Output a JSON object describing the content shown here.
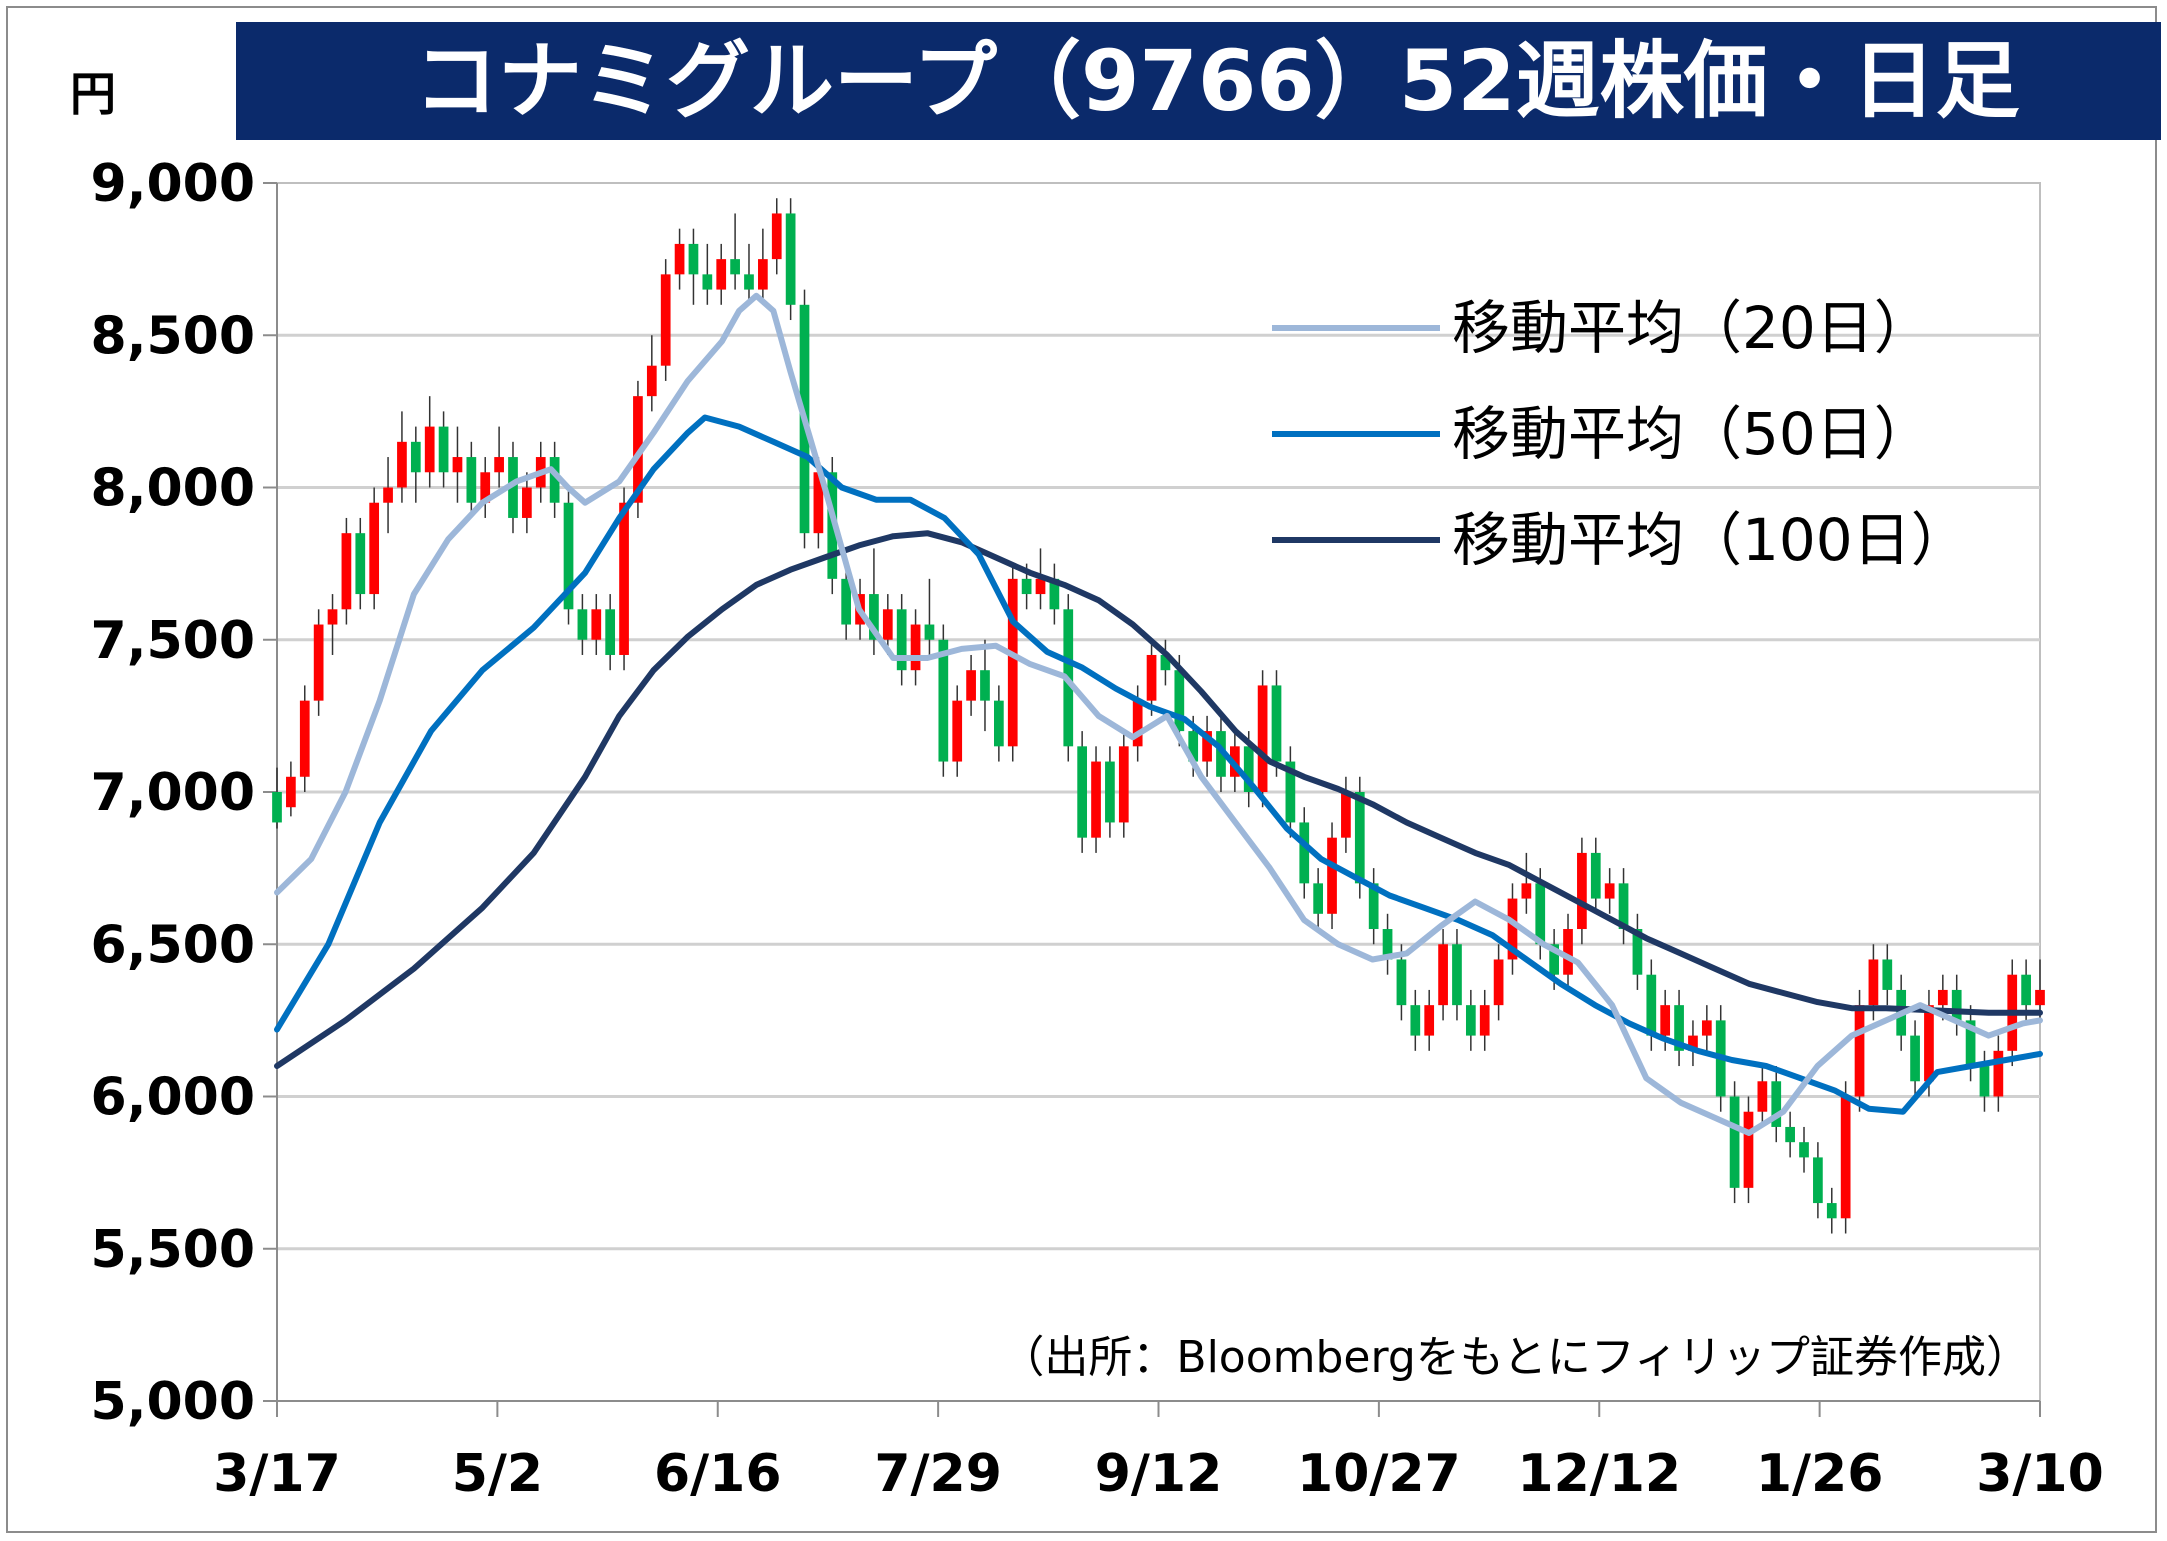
{
  "header": {
    "unit": "円",
    "title": "コナミグループ（9766）52週株価・日足"
  },
  "chart_data": {
    "type": "candlestick",
    "ylim": [
      5000,
      9000
    ],
    "yticks": [
      {
        "value": 9000,
        "label": "9,000"
      },
      {
        "value": 8500,
        "label": "8,500"
      },
      {
        "value": 8000,
        "label": "8,000"
      },
      {
        "value": 7500,
        "label": "7,500"
      },
      {
        "value": 7000,
        "label": "7,000"
      },
      {
        "value": 6500,
        "label": "6,500"
      },
      {
        "value": 6000,
        "label": "6,000"
      },
      {
        "value": 5500,
        "label": "5,500"
      },
      {
        "value": 5000,
        "label": "5,000"
      }
    ],
    "xticks": [
      "3/17",
      "5/2",
      "6/16",
      "7/29",
      "9/12",
      "10/27",
      "12/12",
      "1/26",
      "3/10"
    ],
    "grid": true,
    "source_note": "（出所：Bloombergをもとにフィリップ証券作成）",
    "colors": {
      "up": "#ff0000",
      "down": "#00b050",
      "ma20": "#9db7d9",
      "ma50": "#0070c0",
      "ma100": "#1f3864",
      "grid": "#d0d0d0"
    },
    "legend": [
      {
        "label": "移動平均（20日）",
        "color": "#9db7d9"
      },
      {
        "label": "移動平均（50日）",
        "color": "#0070c0"
      },
      {
        "label": "移動平均（100日）",
        "color": "#1f3864"
      }
    ],
    "ma20": [
      [
        0,
        6670
      ],
      [
        4,
        6780
      ],
      [
        8,
        7000
      ],
      [
        12,
        7300
      ],
      [
        16,
        7650
      ],
      [
        20,
        7830
      ],
      [
        24,
        7950
      ],
      [
        28,
        8020
      ],
      [
        32,
        8060
      ],
      [
        34,
        8000
      ],
      [
        36,
        7950
      ],
      [
        40,
        8020
      ],
      [
        44,
        8180
      ],
      [
        48,
        8350
      ],
      [
        52,
        8480
      ],
      [
        54,
        8580
      ],
      [
        56,
        8630
      ],
      [
        58,
        8580
      ],
      [
        60,
        8380
      ],
      [
        64,
        8000
      ],
      [
        68,
        7600
      ],
      [
        72,
        7440
      ],
      [
        76,
        7440
      ],
      [
        80,
        7470
      ],
      [
        84,
        7480
      ],
      [
        88,
        7420
      ],
      [
        92,
        7380
      ],
      [
        96,
        7250
      ],
      [
        100,
        7180
      ],
      [
        104,
        7250
      ],
      [
        108,
        7050
      ],
      [
        112,
        6900
      ],
      [
        116,
        6750
      ],
      [
        120,
        6580
      ],
      [
        124,
        6500
      ],
      [
        128,
        6450
      ],
      [
        132,
        6470
      ],
      [
        136,
        6560
      ],
      [
        140,
        6640
      ],
      [
        144,
        6580
      ],
      [
        148,
        6500
      ],
      [
        152,
        6440
      ],
      [
        156,
        6300
      ],
      [
        160,
        6060
      ],
      [
        164,
        5980
      ],
      [
        168,
        5930
      ],
      [
        172,
        5880
      ],
      [
        176,
        5950
      ],
      [
        180,
        6100
      ],
      [
        184,
        6200
      ],
      [
        188,
        6250
      ],
      [
        192,
        6300
      ],
      [
        196,
        6250
      ],
      [
        200,
        6200
      ],
      [
        204,
        6240
      ],
      [
        206,
        6250
      ]
    ],
    "ma50": [
      [
        0,
        6220
      ],
      [
        6,
        6500
      ],
      [
        12,
        6900
      ],
      [
        18,
        7200
      ],
      [
        24,
        7400
      ],
      [
        30,
        7540
      ],
      [
        36,
        7720
      ],
      [
        40,
        7900
      ],
      [
        44,
        8060
      ],
      [
        48,
        8180
      ],
      [
        50,
        8230
      ],
      [
        54,
        8200
      ],
      [
        58,
        8150
      ],
      [
        62,
        8100
      ],
      [
        66,
        8000
      ],
      [
        70,
        7960
      ],
      [
        74,
        7960
      ],
      [
        78,
        7900
      ],
      [
        82,
        7780
      ],
      [
        86,
        7560
      ],
      [
        90,
        7460
      ],
      [
        94,
        7410
      ],
      [
        98,
        7340
      ],
      [
        102,
        7280
      ],
      [
        106,
        7240
      ],
      [
        110,
        7150
      ],
      [
        114,
        7020
      ],
      [
        118,
        6880
      ],
      [
        122,
        6780
      ],
      [
        126,
        6720
      ],
      [
        130,
        6660
      ],
      [
        134,
        6620
      ],
      [
        138,
        6580
      ],
      [
        142,
        6530
      ],
      [
        146,
        6450
      ],
      [
        150,
        6370
      ],
      [
        154,
        6300
      ],
      [
        158,
        6240
      ],
      [
        162,
        6190
      ],
      [
        166,
        6150
      ],
      [
        170,
        6120
      ],
      [
        174,
        6100
      ],
      [
        178,
        6060
      ],
      [
        182,
        6020
      ],
      [
        186,
        5960
      ],
      [
        190,
        5950
      ],
      [
        194,
        6080
      ],
      [
        198,
        6100
      ],
      [
        202,
        6120
      ],
      [
        206,
        6140
      ]
    ],
    "ma100": [
      [
        0,
        6100
      ],
      [
        8,
        6250
      ],
      [
        16,
        6420
      ],
      [
        24,
        6620
      ],
      [
        30,
        6800
      ],
      [
        36,
        7050
      ],
      [
        40,
        7250
      ],
      [
        44,
        7400
      ],
      [
        48,
        7510
      ],
      [
        52,
        7600
      ],
      [
        56,
        7680
      ],
      [
        60,
        7730
      ],
      [
        64,
        7770
      ],
      [
        68,
        7810
      ],
      [
        72,
        7840
      ],
      [
        76,
        7850
      ],
      [
        80,
        7820
      ],
      [
        84,
        7770
      ],
      [
        88,
        7720
      ],
      [
        92,
        7680
      ],
      [
        96,
        7630
      ],
      [
        100,
        7550
      ],
      [
        104,
        7450
      ],
      [
        108,
        7330
      ],
      [
        112,
        7200
      ],
      [
        116,
        7100
      ],
      [
        120,
        7050
      ],
      [
        124,
        7010
      ],
      [
        128,
        6960
      ],
      [
        132,
        6900
      ],
      [
        136,
        6850
      ],
      [
        140,
        6800
      ],
      [
        144,
        6760
      ],
      [
        148,
        6700
      ],
      [
        152,
        6640
      ],
      [
        156,
        6580
      ],
      [
        160,
        6520
      ],
      [
        164,
        6470
      ],
      [
        168,
        6420
      ],
      [
        172,
        6370
      ],
      [
        176,
        6340
      ],
      [
        180,
        6310
      ],
      [
        184,
        6290
      ],
      [
        188,
        6290
      ],
      [
        192,
        6285
      ],
      [
        196,
        6280
      ],
      [
        200,
        6275
      ],
      [
        204,
        6275
      ],
      [
        206,
        6275
      ]
    ],
    "candles": [
      [
        7000,
        6900,
        7080,
        6880
      ],
      [
        6950,
        7050,
        7100,
        6920
      ],
      [
        7050,
        7300,
        7350,
        7000
      ],
      [
        7300,
        7550,
        7600,
        7250
      ],
      [
        7550,
        7600,
        7650,
        7450
      ],
      [
        7600,
        7850,
        7900,
        7550
      ],
      [
        7850,
        7650,
        7900,
        7600
      ],
      [
        7650,
        7950,
        8000,
        7600
      ],
      [
        7950,
        8000,
        8100,
        7850
      ],
      [
        8000,
        8150,
        8250,
        7950
      ],
      [
        8150,
        8050,
        8200,
        7950
      ],
      [
        8050,
        8200,
        8300,
        8000
      ],
      [
        8200,
        8050,
        8250,
        8000
      ],
      [
        8050,
        8100,
        8200,
        7950
      ],
      [
        8100,
        7950,
        8150,
        7900
      ],
      [
        7950,
        8050,
        8100,
        7900
      ],
      [
        8050,
        8100,
        8200,
        8000
      ],
      [
        8100,
        7900,
        8150,
        7850
      ],
      [
        7900,
        8000,
        8050,
        7850
      ],
      [
        8000,
        8100,
        8150,
        7950
      ],
      [
        8100,
        7950,
        8150,
        7900
      ],
      [
        7950,
        7600,
        8000,
        7550
      ],
      [
        7600,
        7500,
        7650,
        7450
      ],
      [
        7500,
        7600,
        7650,
        7450
      ],
      [
        7600,
        7450,
        7650,
        7400
      ],
      [
        7450,
        7950,
        8000,
        7400
      ],
      [
        7950,
        8300,
        8350,
        7900
      ],
      [
        8300,
        8400,
        8500,
        8250
      ],
      [
        8400,
        8700,
        8750,
        8350
      ],
      [
        8700,
        8800,
        8850,
        8650
      ],
      [
        8800,
        8700,
        8850,
        8600
      ],
      [
        8700,
        8650,
        8800,
        8600
      ],
      [
        8650,
        8750,
        8800,
        8600
      ],
      [
        8750,
        8700,
        8900,
        8650
      ],
      [
        8700,
        8650,
        8800,
        8600
      ],
      [
        8650,
        8750,
        8850,
        8600
      ],
      [
        8750,
        8900,
        8950,
        8700
      ],
      [
        8900,
        8600,
        8950,
        8550
      ],
      [
        8600,
        7850,
        8650,
        7800
      ],
      [
        7850,
        8050,
        8100,
        7800
      ],
      [
        8050,
        7700,
        8100,
        7650
      ],
      [
        7700,
        7550,
        7750,
        7500
      ],
      [
        7550,
        7650,
        7700,
        7500
      ],
      [
        7650,
        7500,
        7800,
        7450
      ],
      [
        7500,
        7600,
        7650,
        7450
      ],
      [
        7600,
        7400,
        7650,
        7350
      ],
      [
        7400,
        7550,
        7600,
        7350
      ],
      [
        7550,
        7500,
        7700,
        7450
      ],
      [
        7500,
        7100,
        7550,
        7050
      ],
      [
        7100,
        7300,
        7350,
        7050
      ],
      [
        7300,
        7400,
        7450,
        7250
      ],
      [
        7400,
        7300,
        7500,
        7200
      ],
      [
        7300,
        7150,
        7350,
        7100
      ],
      [
        7150,
        7700,
        7750,
        7100
      ],
      [
        7700,
        7650,
        7750,
        7600
      ],
      [
        7650,
        7700,
        7800,
        7600
      ],
      [
        7700,
        7600,
        7750,
        7550
      ],
      [
        7600,
        7150,
        7650,
        7100
      ],
      [
        7150,
        6850,
        7200,
        6800
      ],
      [
        6850,
        7100,
        7150,
        6800
      ],
      [
        7100,
        6900,
        7150,
        6850
      ],
      [
        6900,
        7150,
        7200,
        6850
      ],
      [
        7150,
        7300,
        7350,
        7100
      ],
      [
        7300,
        7450,
        7500,
        7250
      ],
      [
        7450,
        7400,
        7500,
        7350
      ],
      [
        7400,
        7200,
        7450,
        7150
      ],
      [
        7200,
        7100,
        7250,
        7050
      ],
      [
        7100,
        7200,
        7250,
        7050
      ],
      [
        7200,
        7050,
        7250,
        7000
      ],
      [
        7050,
        7150,
        7200,
        7000
      ],
      [
        7150,
        7000,
        7200,
        6950
      ],
      [
        7000,
        7350,
        7400,
        6950
      ],
      [
        7350,
        7100,
        7400,
        7050
      ],
      [
        7100,
        6900,
        7150,
        6850
      ],
      [
        6900,
        6700,
        6950,
        6650
      ],
      [
        6700,
        6600,
        6750,
        6550
      ],
      [
        6600,
        6850,
        6900,
        6550
      ],
      [
        6850,
        7000,
        7050,
        6800
      ],
      [
        7000,
        6700,
        7050,
        6650
      ],
      [
        6700,
        6550,
        6750,
        6500
      ],
      [
        6550,
        6450,
        6600,
        6400
      ],
      [
        6450,
        6300,
        6500,
        6250
      ],
      [
        6300,
        6200,
        6350,
        6150
      ],
      [
        6200,
        6300,
        6350,
        6150
      ],
      [
        6300,
        6500,
        6550,
        6250
      ],
      [
        6500,
        6300,
        6550,
        6250
      ],
      [
        6300,
        6200,
        6350,
        6150
      ],
      [
        6200,
        6300,
        6350,
        6150
      ],
      [
        6300,
        6450,
        6500,
        6250
      ],
      [
        6450,
        6650,
        6700,
        6400
      ],
      [
        6650,
        6700,
        6800,
        6600
      ],
      [
        6700,
        6500,
        6750,
        6450
      ],
      [
        6500,
        6400,
        6550,
        6350
      ],
      [
        6400,
        6550,
        6600,
        6350
      ],
      [
        6550,
        6800,
        6850,
        6500
      ],
      [
        6800,
        6650,
        6850,
        6600
      ],
      [
        6650,
        6700,
        6750,
        6600
      ],
      [
        6700,
        6550,
        6750,
        6500
      ],
      [
        6550,
        6400,
        6600,
        6350
      ],
      [
        6400,
        6200,
        6450,
        6150
      ],
      [
        6200,
        6300,
        6350,
        6150
      ],
      [
        6300,
        6150,
        6350,
        6100
      ],
      [
        6150,
        6200,
        6250,
        6100
      ],
      [
        6200,
        6250,
        6300,
        6150
      ],
      [
        6250,
        6000,
        6300,
        5950
      ],
      [
        6000,
        5700,
        6050,
        5650
      ],
      [
        5700,
        5950,
        6000,
        5650
      ],
      [
        5950,
        6050,
        6100,
        5900
      ],
      [
        6050,
        5900,
        6100,
        5850
      ],
      [
        5900,
        5850,
        5950,
        5800
      ],
      [
        5850,
        5800,
        5900,
        5750
      ],
      [
        5800,
        5650,
        5850,
        5600
      ],
      [
        5650,
        5600,
        5700,
        5550
      ],
      [
        5600,
        6000,
        6050,
        5550
      ],
      [
        6000,
        6300,
        6350,
        5950
      ],
      [
        6300,
        6450,
        6500,
        6250
      ],
      [
        6450,
        6350,
        6500,
        6300
      ],
      [
        6350,
        6200,
        6400,
        6150
      ],
      [
        6200,
        6050,
        6250,
        6000
      ],
      [
        6050,
        6300,
        6350,
        6000
      ],
      [
        6300,
        6350,
        6400,
        6250
      ],
      [
        6350,
        6250,
        6400,
        6200
      ],
      [
        6250,
        6100,
        6300,
        6050
      ],
      [
        6100,
        6000,
        6150,
        5950
      ],
      [
        6000,
        6150,
        6200,
        5950
      ],
      [
        6150,
        6400,
        6450,
        6100
      ],
      [
        6400,
        6300,
        6450,
        6250
      ],
      [
        6300,
        6350,
        6450,
        6250
      ]
    ]
  }
}
